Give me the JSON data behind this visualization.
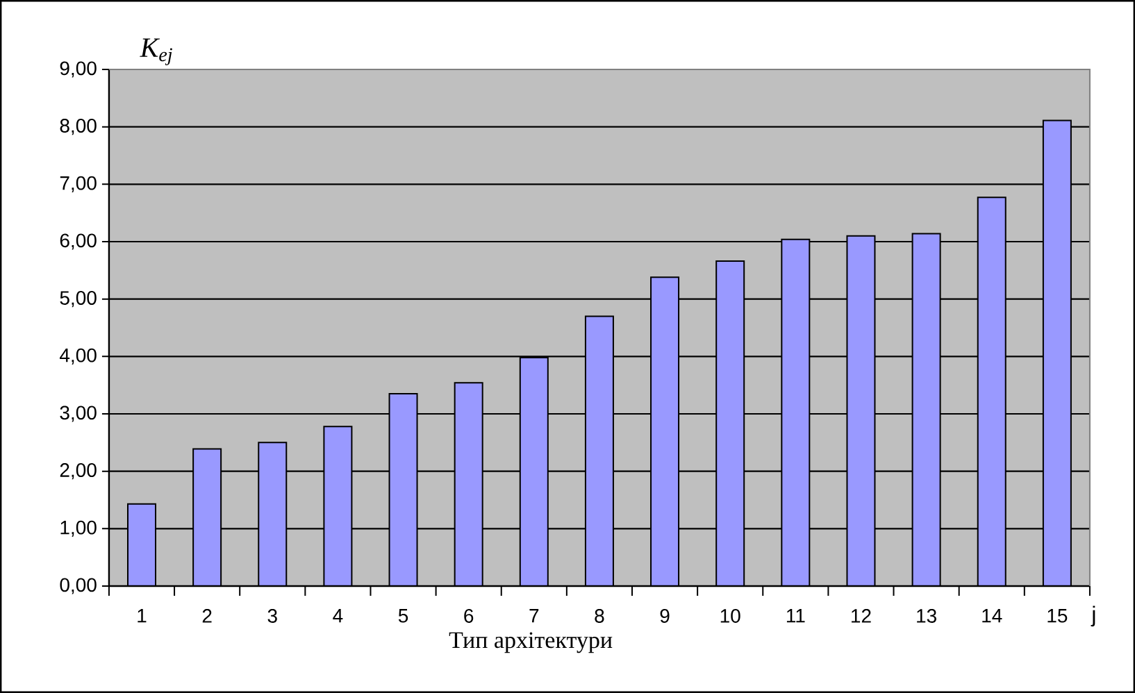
{
  "chart_data": {
    "type": "bar",
    "xlabel": "Тип архітектури",
    "ylabel": "K$_{ej}$",
    "annotations": [
      "j"
    ],
    "categories": [
      "1",
      "2",
      "3",
      "4",
      "5",
      "6",
      "7",
      "8",
      "9",
      "10",
      "11",
      "12",
      "13",
      "14",
      "15"
    ],
    "values": [
      1.43,
      2.39,
      2.5,
      2.78,
      3.35,
      3.54,
      3.98,
      4.7,
      5.38,
      5.66,
      6.04,
      6.1,
      6.14,
      6.77,
      8.11
    ],
    "color": "#9999ff",
    "ylim": [
      0,
      9
    ],
    "yticks": [
      {
        "value": 0,
        "label": "0,00"
      },
      {
        "value": 1,
        "label": "1,00"
      },
      {
        "value": 2,
        "label": "2,00"
      },
      {
        "value": 3,
        "label": "3,00"
      },
      {
        "value": 4,
        "label": "4,00"
      },
      {
        "value": 5,
        "label": "5,00"
      },
      {
        "value": 6,
        "label": "6,00"
      },
      {
        "value": 7,
        "label": "7,00"
      },
      {
        "value": 8,
        "label": "8,00"
      },
      {
        "value": 9,
        "label": "9,00"
      }
    ],
    "grid": "y"
  }
}
